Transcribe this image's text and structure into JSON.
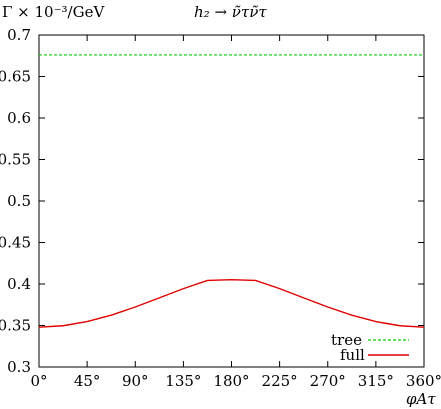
{
  "chart_data": {
    "type": "line",
    "title": "h₂ → ν̃τν̃τ",
    "ylabel": "Γ × 10⁻³/GeV",
    "xlabel": "φAτ",
    "xlim": [
      0,
      360
    ],
    "ylim": [
      0.3,
      0.7
    ],
    "x_ticks": [
      0,
      45,
      90,
      135,
      180,
      225,
      270,
      315,
      360
    ],
    "x_tick_labels": [
      "0°",
      "45°",
      "90°",
      "135°",
      "180°",
      "225°",
      "270°",
      "315°",
      "360°"
    ],
    "y_ticks": [
      0.3,
      0.35,
      0.4,
      0.45,
      0.5,
      0.55,
      0.6,
      0.65,
      0.7
    ],
    "y_tick_labels": [
      "0.3",
      "0.35",
      "0.4",
      "0.45",
      "0.5",
      "0.55",
      "0.6",
      "0.65",
      "0.7"
    ],
    "legend_position": "bottom-right",
    "grid": false,
    "series": [
      {
        "name": "tree",
        "color": "#00cc00",
        "dashed": true,
        "x": [
          0,
          45,
          90,
          135,
          180,
          225,
          270,
          315,
          360
        ],
        "y": [
          0.676,
          0.676,
          0.676,
          0.676,
          0.676,
          0.676,
          0.676,
          0.676,
          0.676
        ]
      },
      {
        "name": "full",
        "color": "#e00000",
        "dashed": false,
        "x": [
          0,
          22.5,
          45,
          67.5,
          90,
          112.5,
          135,
          157.5,
          180,
          202.5,
          225,
          247.5,
          270,
          292.5,
          315,
          337.5,
          360
        ],
        "y": [
          0.348,
          0.3497,
          0.3547,
          0.3624,
          0.3723,
          0.3833,
          0.3944,
          0.4043,
          0.4052,
          0.4043,
          0.3944,
          0.3833,
          0.3723,
          0.3624,
          0.3547,
          0.3497,
          0.348
        ]
      }
    ]
  }
}
